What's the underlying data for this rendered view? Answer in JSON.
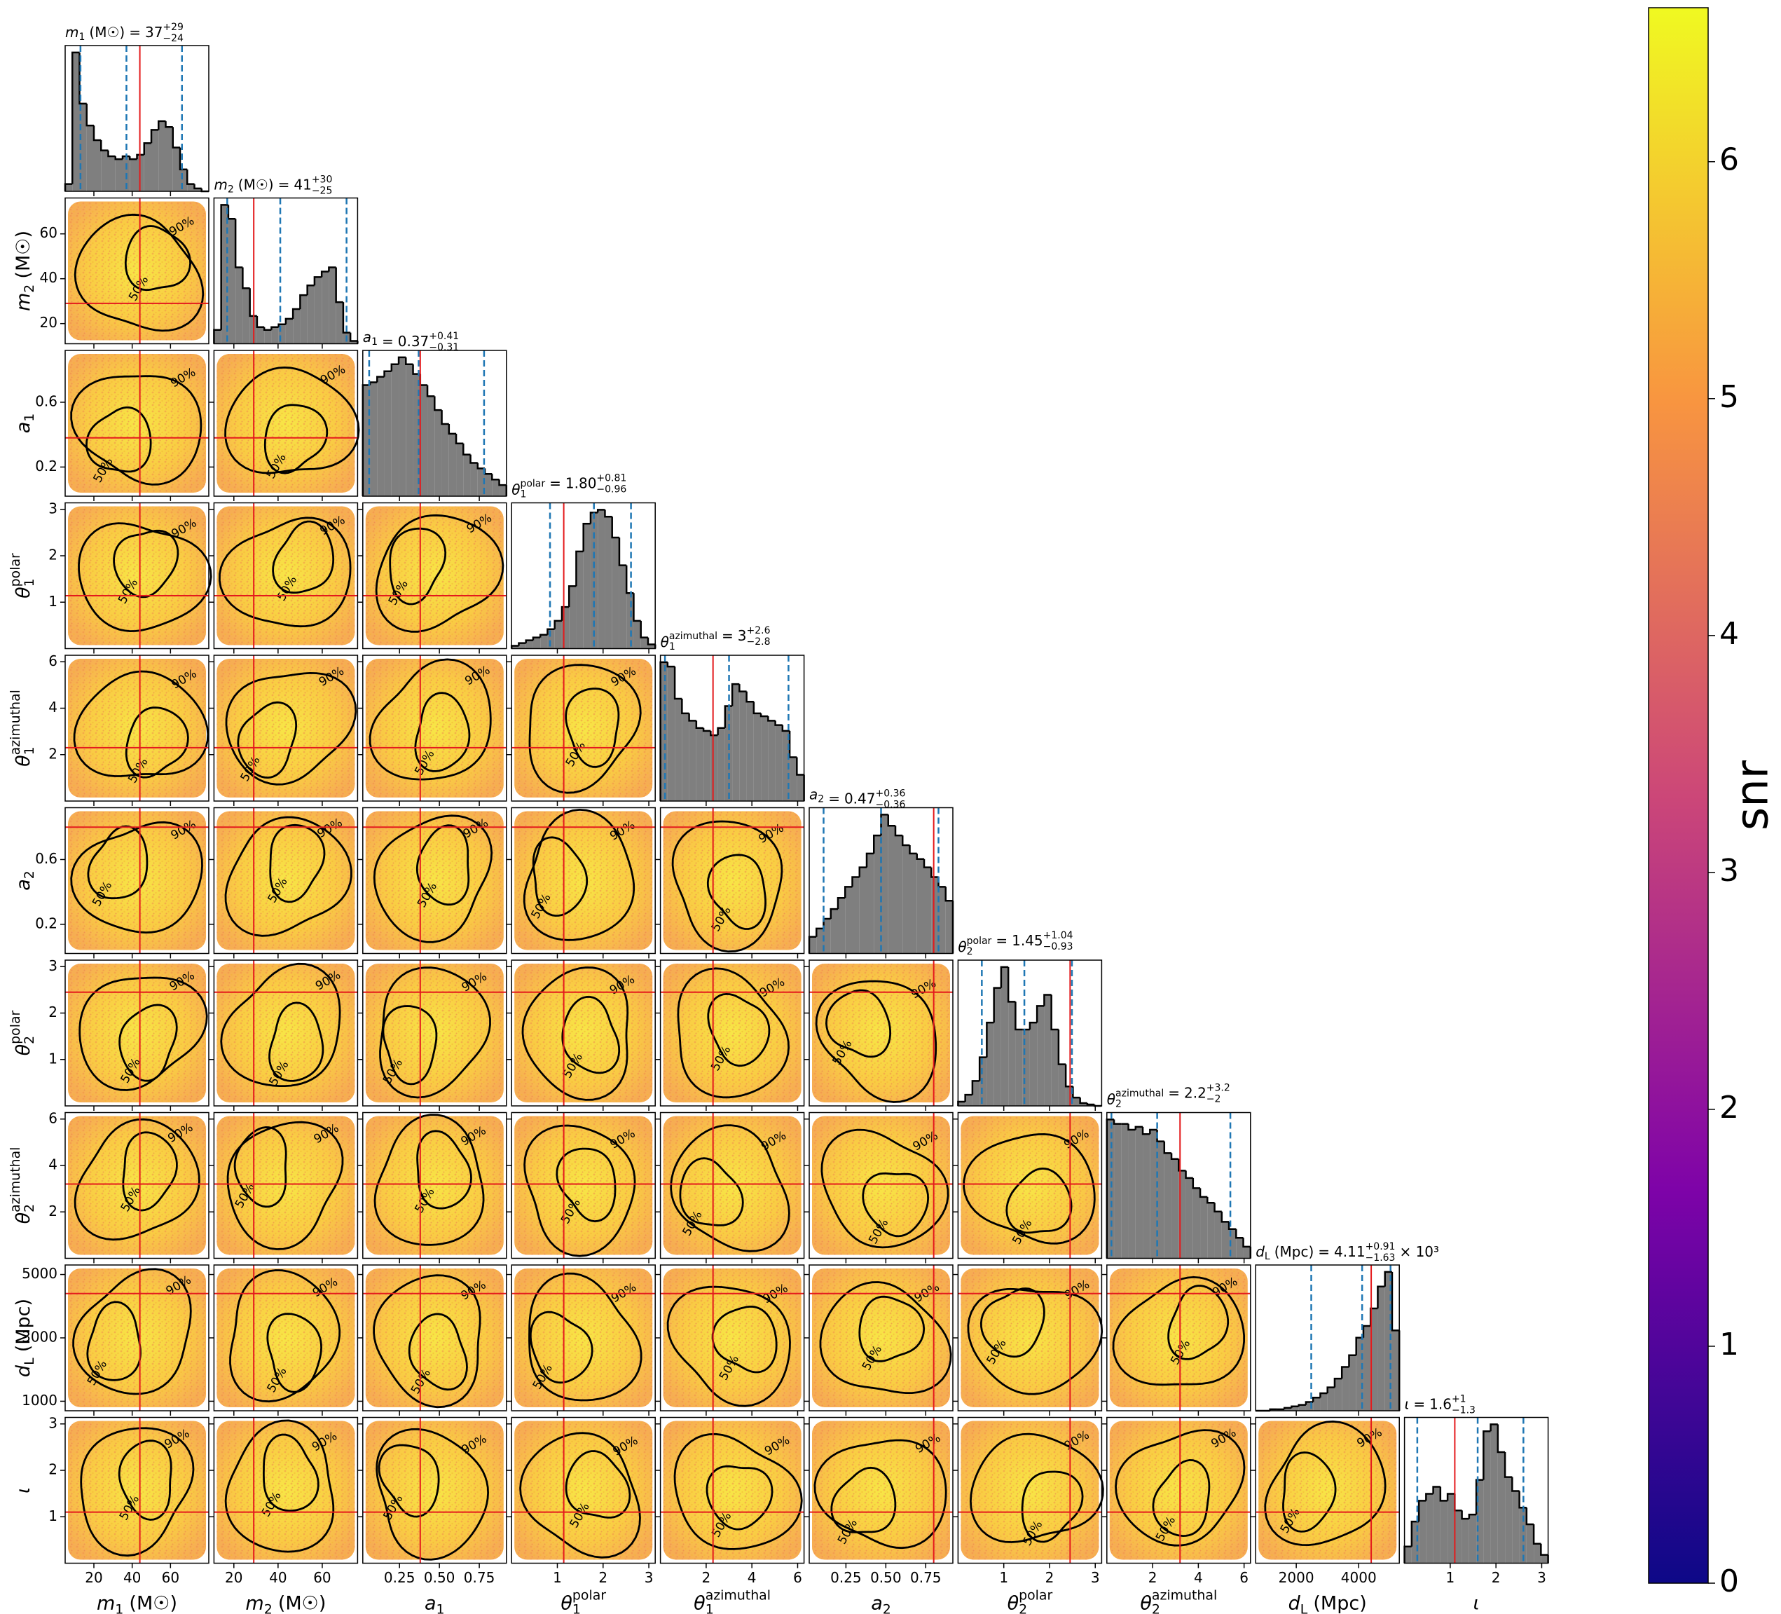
{
  "chart_data": {
    "type": "corner",
    "title_separator": "=",
    "contour_levels": [
      "50%",
      "90%"
    ],
    "parameters": [
      {
        "label": {
          "symbol": "m",
          "sub": "1",
          "unit": "(M☉)"
        },
        "title": {
          "value": "37",
          "plus": "+29",
          "minus": "−24"
        },
        "xlim": [
          5,
          80
        ],
        "xticks": [
          20,
          40,
          60
        ],
        "truth": 44,
        "quantiles": [
          13,
          37,
          66
        ],
        "bins": [
          5,
          8.75,
          12.5,
          16.25,
          20,
          23.75,
          27.5,
          31.25,
          35,
          38.75,
          42.5,
          46.25,
          50,
          53.75,
          57.5,
          61.25,
          65,
          68.75,
          72.5,
          76.25,
          80
        ],
        "counts": [
          5,
          95,
          60,
          45,
          35,
          28,
          24,
          22,
          24,
          22,
          25,
          33,
          42,
          48,
          44,
          30,
          15,
          5,
          2,
          0
        ]
      },
      {
        "label": {
          "symbol": "m",
          "sub": "2",
          "unit": "(M☉)"
        },
        "title": {
          "value": "41",
          "plus": "+30",
          "minus": "−25"
        },
        "xlim": [
          11,
          76
        ],
        "xticks": [
          20,
          40,
          60
        ],
        "yticks": [
          20,
          40,
          60
        ],
        "truth": 29,
        "quantiles": [
          17,
          41,
          71
        ],
        "bins": [
          11,
          14.25,
          17.5,
          20.75,
          24,
          27.25,
          30.5,
          33.75,
          37,
          40.25,
          43.5,
          46.75,
          50,
          53.25,
          56.5,
          59.75,
          63,
          66.25,
          69.5,
          72.75,
          76
        ],
        "counts": [
          10,
          100,
          90,
          55,
          40,
          20,
          12,
          10,
          12,
          14,
          18,
          25,
          35,
          42,
          48,
          52,
          55,
          30,
          8,
          2
        ]
      },
      {
        "label": {
          "symbol": "a",
          "sub": "1"
        },
        "title": {
          "value": "0.37",
          "plus": "+0.41",
          "minus": "−0.31"
        },
        "xlim": [
          0.02,
          0.92
        ],
        "xticks": [
          0.25,
          {
            "value": 0.5,
            "label": "0.50"
          },
          0.75
        ],
        "yticks": [
          0.2,
          0.6
        ],
        "truth": 0.38,
        "quantiles": [
          0.06,
          0.37,
          0.78
        ],
        "bins": [
          0.02,
          0.065,
          0.11,
          0.155,
          0.2,
          0.245,
          0.29,
          0.335,
          0.38,
          0.425,
          0.47,
          0.515,
          0.56,
          0.605,
          0.65,
          0.695,
          0.74,
          0.785,
          0.83,
          0.875,
          0.92
        ],
        "counts": [
          80,
          82,
          86,
          90,
          95,
          100,
          95,
          88,
          80,
          72,
          62,
          52,
          45,
          38,
          30,
          24,
          20,
          16,
          12,
          8
        ]
      },
      {
        "label": {
          "symbol": "θ",
          "sub": "1",
          "sup": "polar"
        },
        "title": {
          "value": "1.80",
          "plus": "+0.81",
          "minus": "−0.96"
        },
        "xlim": [
          0,
          3.14
        ],
        "xticks": [
          1,
          2,
          3
        ],
        "yticks": [
          1,
          2,
          3
        ],
        "truth": 1.14,
        "quantiles": [
          0.84,
          1.8,
          2.61
        ],
        "bins": [
          0,
          0.157,
          0.314,
          0.471,
          0.628,
          0.785,
          0.942,
          1.099,
          1.256,
          1.413,
          1.57,
          1.727,
          1.884,
          2.041,
          2.198,
          2.355,
          2.512,
          2.669,
          2.826,
          2.983,
          3.14
        ],
        "counts": [
          2,
          4,
          6,
          8,
          10,
          14,
          20,
          30,
          45,
          70,
          90,
          98,
          100,
          95,
          80,
          60,
          40,
          20,
          8,
          3
        ]
      },
      {
        "label": {
          "symbol": "θ",
          "sub": "1",
          "sup": "azimuthal"
        },
        "title": {
          "value": "3",
          "plus": "+2.6",
          "minus": "−2.8"
        },
        "xlim": [
          0,
          6.28
        ],
        "xticks": [
          2,
          4,
          6
        ],
        "yticks": [
          2,
          4,
          6
        ],
        "truth": 2.3,
        "quantiles": [
          0.2,
          3,
          5.6
        ],
        "bins": [
          0,
          0.314,
          0.628,
          0.942,
          1.256,
          1.57,
          1.884,
          2.198,
          2.512,
          2.826,
          3.14,
          3.454,
          3.768,
          4.082,
          4.396,
          4.71,
          5.024,
          5.338,
          5.652,
          5.966,
          6.28
        ],
        "counts": [
          95,
          92,
          70,
          60,
          55,
          50,
          48,
          45,
          50,
          65,
          80,
          75,
          68,
          60,
          58,
          55,
          52,
          48,
          30,
          18
        ]
      },
      {
        "label": {
          "symbol": "a",
          "sub": "2"
        },
        "title": {
          "value": "0.47",
          "plus": "+0.36",
          "minus": "−0.36"
        },
        "xlim": [
          0.02,
          0.92
        ],
        "xticks": [
          0.25,
          {
            "value": 0.5,
            "label": "0.50"
          },
          0.75
        ],
        "yticks": [
          0.2,
          0.6
        ],
        "truth": 0.8,
        "quantiles": [
          0.11,
          0.47,
          0.83
        ],
        "bins": [
          0.02,
          0.065,
          0.11,
          0.155,
          0.2,
          0.245,
          0.29,
          0.335,
          0.38,
          0.425,
          0.47,
          0.515,
          0.56,
          0.605,
          0.65,
          0.695,
          0.74,
          0.785,
          0.83,
          0.875,
          0.92
        ],
        "counts": [
          12,
          18,
          25,
          32,
          40,
          48,
          55,
          62,
          72,
          85,
          100,
          92,
          85,
          78,
          72,
          68,
          62,
          55,
          48,
          38
        ]
      },
      {
        "label": {
          "symbol": "θ",
          "sub": "2",
          "sup": "polar"
        },
        "title": {
          "value": "1.45",
          "plus": "+1.04",
          "minus": "−0.93"
        },
        "xlim": [
          0,
          3.14
        ],
        "xticks": [
          1,
          2,
          3
        ],
        "yticks": [
          1,
          2,
          3
        ],
        "truth": 2.45,
        "quantiles": [
          0.52,
          1.45,
          2.49
        ],
        "bins": [
          0,
          0.157,
          0.314,
          0.471,
          0.628,
          0.785,
          0.942,
          1.099,
          1.256,
          1.413,
          1.57,
          1.727,
          1.884,
          2.041,
          2.198,
          2.355,
          2.512,
          2.669,
          2.826,
          2.983,
          3.14
        ],
        "counts": [
          3,
          8,
          18,
          35,
          60,
          85,
          100,
          75,
          55,
          55,
          60,
          72,
          80,
          55,
          30,
          14,
          6,
          2,
          1,
          0
        ]
      },
      {
        "label": {
          "symbol": "θ",
          "sub": "2",
          "sup": "azimuthal"
        },
        "title": {
          "value": "2.2",
          "plus": "+3.2",
          "minus": "−2"
        },
        "xlim": [
          0,
          6.28
        ],
        "xticks": [
          2,
          4,
          6
        ],
        "yticks": [
          2,
          4,
          6
        ],
        "truth": 3.2,
        "quantiles": [
          0.2,
          2.2,
          5.4
        ],
        "bins": [
          0,
          0.314,
          0.628,
          0.942,
          1.256,
          1.57,
          1.884,
          2.198,
          2.512,
          2.826,
          3.14,
          3.454,
          3.768,
          4.082,
          4.396,
          4.71,
          5.024,
          5.338,
          5.652,
          5.966,
          6.28
        ],
        "counts": [
          95,
          92,
          92,
          88,
          90,
          85,
          88,
          80,
          72,
          68,
          60,
          55,
          48,
          42,
          38,
          32,
          25,
          20,
          14,
          8
        ]
      },
      {
        "label": {
          "symbol": "d",
          "sub": "L",
          "unit": "(Mpc)"
        },
        "title": {
          "value": "4.11",
          "plus": "+0.91",
          "minus": "−1.63",
          "suffix": "× 10³"
        },
        "xlim": [
          700,
          5300
        ],
        "xticks": [
          2000,
          4000
        ],
        "yticks": [
          1000,
          3000,
          5000
        ],
        "truth": 4400,
        "quantiles": [
          2480,
          4110,
          5020
        ],
        "bins": [
          700,
          930,
          1160,
          1390,
          1620,
          1850,
          2080,
          2310,
          2540,
          2770,
          3000,
          3230,
          3460,
          3690,
          3920,
          4150,
          4380,
          4610,
          4840,
          5070,
          5300
        ],
        "counts": [
          0,
          0,
          1,
          1,
          2,
          3,
          4,
          6,
          9,
          12,
          16,
          22,
          30,
          38,
          50,
          58,
          70,
          85,
          95,
          55
        ]
      },
      {
        "label": {
          "symbol": "ι"
        },
        "title": {
          "value": "1.6",
          "plus": "+1",
          "minus": "−1.3"
        },
        "xlim": [
          0,
          3.14
        ],
        "xticks": [
          1,
          2,
          3
        ],
        "yticks": [
          1,
          2,
          3
        ],
        "truth": 1.1,
        "quantiles": [
          0.28,
          1.6,
          2.6
        ],
        "bins": [
          0,
          0.157,
          0.314,
          0.471,
          0.628,
          0.785,
          0.942,
          1.099,
          1.256,
          1.413,
          1.57,
          1.727,
          1.884,
          2.041,
          2.198,
          2.355,
          2.512,
          2.669,
          2.826,
          2.983,
          3.14
        ],
        "counts": [
          12,
          30,
          45,
          50,
          55,
          45,
          50,
          38,
          32,
          35,
          60,
          95,
          100,
          80,
          62,
          52,
          40,
          28,
          14,
          6
        ]
      }
    ],
    "colorbar": {
      "label": "snr",
      "lim": [
        0,
        6.65
      ],
      "ticks": [
        0,
        1,
        2,
        3,
        4,
        5,
        6
      ],
      "colors": [
        "#0d0887",
        "#7e03a8",
        "#cc4778",
        "#f89540",
        "#f0f921"
      ]
    }
  }
}
